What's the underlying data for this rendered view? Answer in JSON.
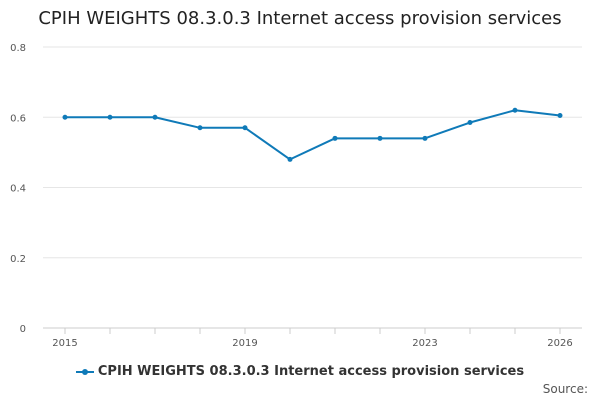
{
  "chart_data": {
    "type": "line",
    "title": "CPIH WEIGHTS 08.3.0.3 Internet access provision services",
    "xlabel": "",
    "ylabel": "",
    "x": [
      2015,
      2016,
      2017,
      2018,
      2019,
      2020,
      2021,
      2022,
      2023,
      2024,
      2025,
      2026
    ],
    "x_tick_labels": [
      "2015",
      "2019",
      "2023",
      "2026"
    ],
    "y_ticks": [
      0,
      0.2,
      0.4,
      0.6,
      0.8
    ],
    "ylim": [
      0,
      0.8
    ],
    "grid": true,
    "legend_position": "bottom",
    "series": [
      {
        "name": "CPIH WEIGHTS 08.3.0.3 Internet access provision services",
        "color": "#0f7ab8",
        "values": [
          0.6,
          0.6,
          0.6,
          0.57,
          0.57,
          0.48,
          0.54,
          0.54,
          0.54,
          0.585,
          0.62,
          0.605
        ]
      }
    ]
  },
  "source_label": "Source:"
}
